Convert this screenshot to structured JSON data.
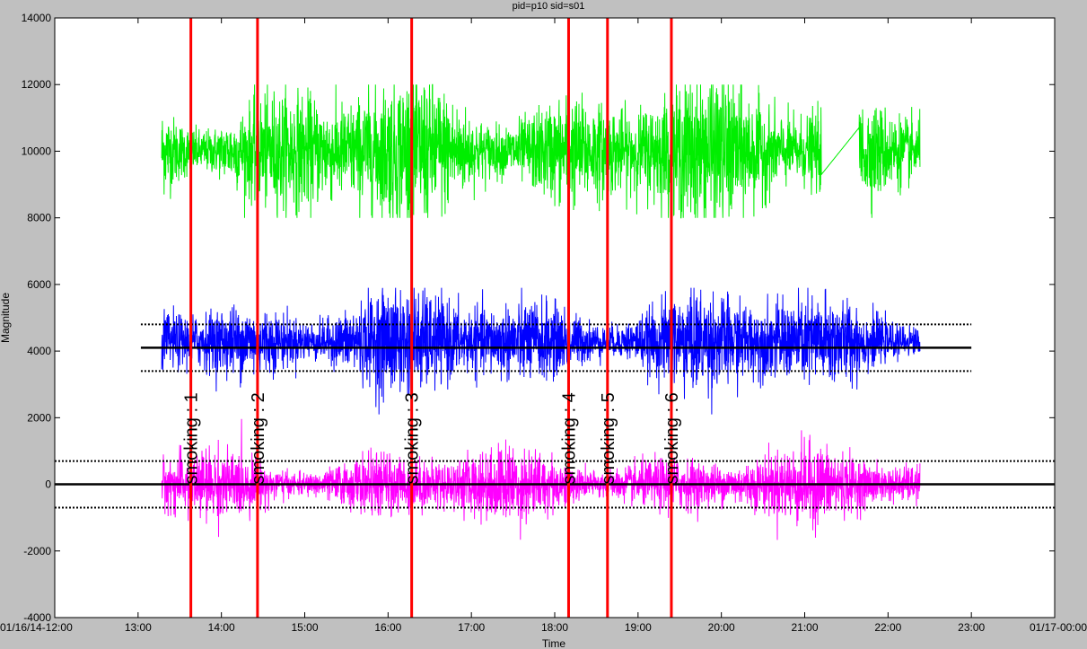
{
  "chart_data": {
    "type": "line",
    "title": "pid=p10 sid=s01",
    "xlabel": "Time",
    "ylabel": "Magnitude",
    "xlim": [
      "01/16/14-12:00",
      "01/17-00:00"
    ],
    "ylim": [
      -4000,
      14000
    ],
    "xticks": [
      "01/16/14-12:00",
      "13:00",
      "14:00",
      "15:00",
      "16:00",
      "17:00",
      "18:00",
      "19:00",
      "20:00",
      "21:00",
      "22:00",
      "23:00",
      "01/17-00:00"
    ],
    "yticks": [
      -4000,
      -2000,
      0,
      2000,
      4000,
      6000,
      8000,
      10000,
      12000,
      14000
    ],
    "grid": false,
    "legend": "none",
    "series": [
      {
        "color": "#00ee00",
        "time_range": [
          "13:17",
          "22:23"
        ],
        "gap": [
          "21:12",
          "21:39"
        ],
        "baseline": 10000,
        "envelope_min": 8000,
        "envelope_max": 12000
      },
      {
        "color": "#0000ff",
        "time_range": [
          "13:17",
          "22:23"
        ],
        "baseline": 4300,
        "envelope_min": 2100,
        "envelope_max": 5900
      },
      {
        "color": "#ff00ff",
        "time_range": [
          "13:17",
          "22:23"
        ],
        "baseline": 0,
        "envelope_min": -2050,
        "envelope_max": 2000
      }
    ],
    "reference_lines": [
      {
        "kind": "solid",
        "y": 4100,
        "x_from": "13:02",
        "x_to": "23:00"
      },
      {
        "kind": "dotted",
        "y": 4800,
        "x_from": "13:02",
        "x_to": "23:00"
      },
      {
        "kind": "dotted",
        "y": 3400,
        "x_from": "13:02",
        "x_to": "23:00"
      },
      {
        "kind": "solid",
        "y": 0,
        "x_from": "01/16/14-12:00",
        "x_to": "01/17-00:00"
      },
      {
        "kind": "dotted",
        "y": 700,
        "x_from": "01/16/14-12:00",
        "x_to": "01/17-00:00"
      },
      {
        "kind": "dotted",
        "y": -700,
        "x_from": "01/16/14-12:00",
        "x_to": "01/17-00:00"
      }
    ],
    "events": [
      {
        "time": "13:38",
        "label": "smoking : 1"
      },
      {
        "time": "14:26",
        "label": "smoking : 2"
      },
      {
        "time": "16:17",
        "label": "smoking : 3"
      },
      {
        "time": "18:10",
        "label": "smoking : 4"
      },
      {
        "time": "18:38",
        "label": "smoking : 5"
      },
      {
        "time": "19:24",
        "label": "smoking : 6"
      }
    ],
    "event_color": "#ff0000"
  }
}
